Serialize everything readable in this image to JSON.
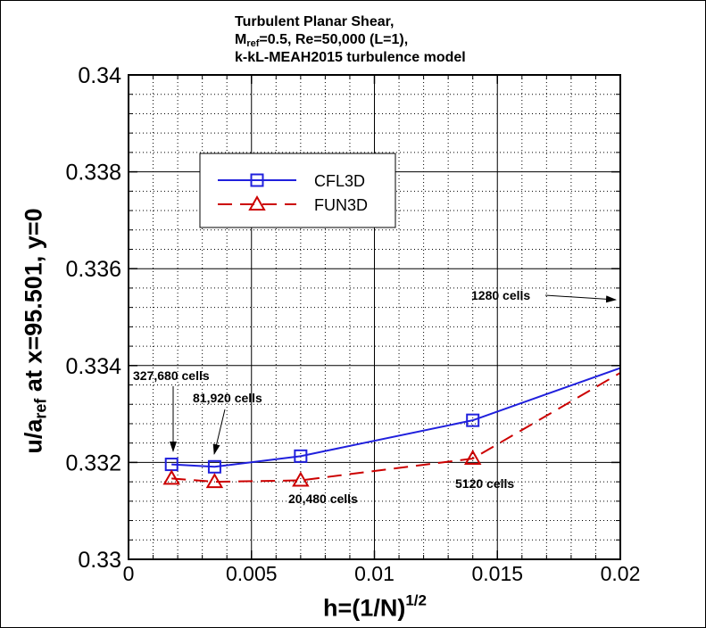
{
  "title": {
    "line1": "Turbulent Planar Shear,",
    "line2_prefix": "M",
    "line2_sub": "ref",
    "line2_suffix": "=0.5, Re=50,000 (L=1),",
    "line3": "k-kL-MEAH2015 turbulence model"
  },
  "axes": {
    "ylabel_prefix": "u/a",
    "ylabel_sub": "ref",
    "ylabel_suffix": " at x=95.501, y=0",
    "xlabel_main": "h=(1/N)",
    "xlabel_sup": "1/2"
  },
  "chart_data": {
    "type": "line",
    "xlim": [
      0,
      0.02
    ],
    "ylim": [
      0.33,
      0.34
    ],
    "xticks": [
      0,
      0.005,
      0.01,
      0.015,
      0.02
    ],
    "xtick_labels": [
      "0",
      "0.005",
      "0.01",
      "0.015",
      "0.02"
    ],
    "yticks": [
      0.33,
      0.332,
      0.334,
      0.336,
      0.338,
      0.34
    ],
    "ytick_labels": [
      "0.33",
      "0.332",
      "0.334",
      "0.336",
      "0.338",
      "0.34"
    ],
    "grid": true,
    "series": [
      {
        "name": "CFL3D",
        "color": "#2020dd",
        "line_style": "solid",
        "marker": "square",
        "x": [
          0.00175,
          0.0035,
          0.007,
          0.014,
          0.02
        ],
        "y": [
          0.33196,
          0.33191,
          0.33213,
          0.33287,
          0.33395
        ]
      },
      {
        "name": "FUN3D",
        "color": "#cc0000",
        "line_style": "dashed",
        "marker": "triangle",
        "x": [
          0.00175,
          0.0035,
          0.007,
          0.014,
          0.02
        ],
        "y": [
          0.33167,
          0.3316,
          0.33163,
          0.33208,
          0.33385
        ]
      }
    ],
    "legend": {
      "position": "upper-left",
      "entries": [
        "CFL3D",
        "FUN3D"
      ]
    },
    "annotations": [
      {
        "text": "327,680 cells",
        "arrow_to": [
          0.00175,
          0.33196
        ]
      },
      {
        "text": "81,920 cells",
        "arrow_to": [
          0.0035,
          0.33191
        ]
      },
      {
        "text": "20,480 cells",
        "arrow_to": null
      },
      {
        "text": "5120 cells",
        "arrow_to": null
      },
      {
        "text": "1280 cells",
        "arrow_to": "off-chart right"
      }
    ]
  }
}
